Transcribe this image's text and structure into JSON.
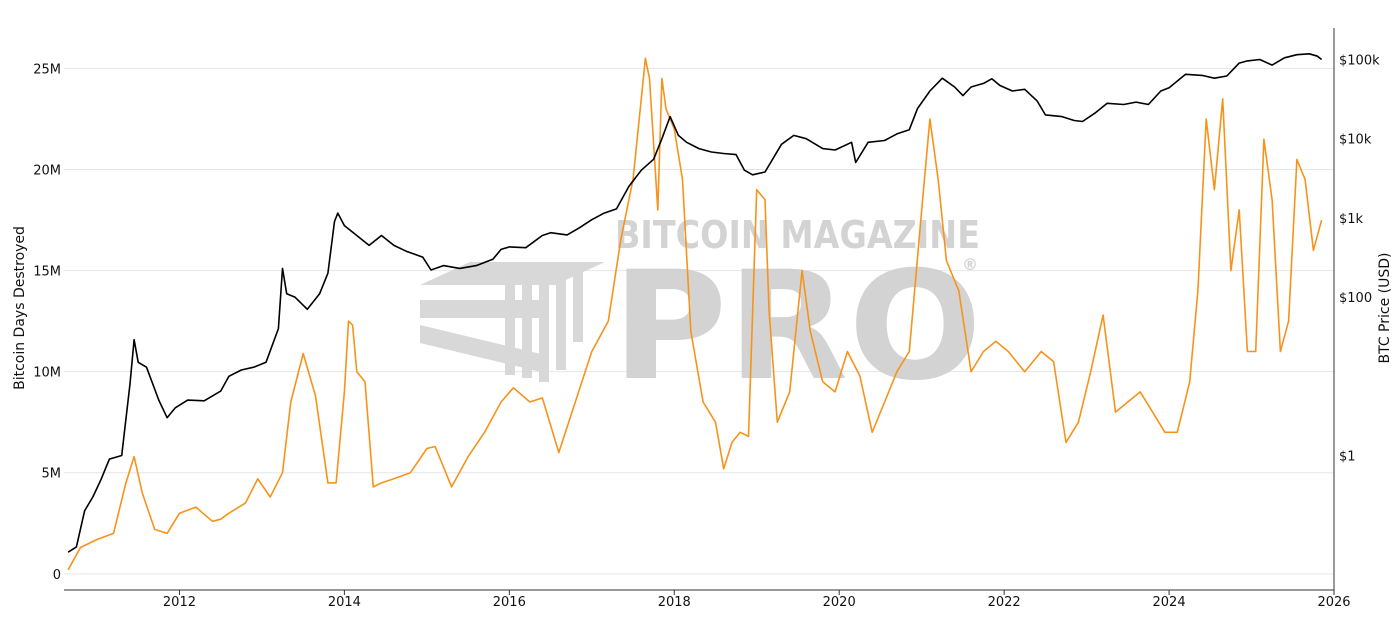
{
  "chart_data": {
    "type": "line",
    "title": "",
    "watermark": {
      "line1": "BITCOIN MAGAZINE",
      "line2": "PRO",
      "mark": "®",
      "color": "#cfcfcf"
    },
    "x_ticks": [
      "2012",
      "2014",
      "2016",
      "2018",
      "2020",
      "2022",
      "2024",
      "2026"
    ],
    "xlim": [
      2010.6,
      2026.0
    ],
    "y_left": {
      "label": "Bitcoin Days Destroyed",
      "ticks": [
        "0",
        "5M",
        "10M",
        "15M",
        "20M",
        "25M"
      ],
      "tick_values": [
        0,
        5000000,
        10000000,
        15000000,
        20000000,
        25000000
      ],
      "range": [
        -800000,
        27000000
      ]
    },
    "y_right": {
      "label": "BTC Price (USD)",
      "scale": "log",
      "ticks": [
        "$1",
        "$100",
        "$1k",
        "$10k",
        "$100k"
      ],
      "tick_values": [
        1,
        100,
        1000,
        10000,
        100000
      ],
      "range": [
        0.02,
        250000
      ]
    },
    "grid": true,
    "series": [
      {
        "name": "Bitcoin Days Destroyed",
        "axis": "left",
        "color": "#f7931a",
        "x": [
          2010.65,
          2010.8,
          2010.9,
          2011.0,
          2011.2,
          2011.35,
          2011.45,
          2011.55,
          2011.7,
          2011.85,
          2012.0,
          2012.2,
          2012.4,
          2012.5,
          2012.6,
          2012.8,
          2012.95,
          2013.1,
          2013.25,
          2013.35,
          2013.5,
          2013.65,
          2013.8,
          2013.9,
          2014.0,
          2014.05,
          2014.1,
          2014.15,
          2014.25,
          2014.35,
          2014.45,
          2014.6,
          2014.8,
          2015.0,
          2015.1,
          2015.3,
          2015.5,
          2015.7,
          2015.9,
          2016.05,
          2016.25,
          2016.4,
          2016.6,
          2016.8,
          2017.0,
          2017.2,
          2017.35,
          2017.5,
          2017.6,
          2017.65,
          2017.7,
          2017.8,
          2017.85,
          2017.9,
          2018.0,
          2018.1,
          2018.2,
          2018.35,
          2018.5,
          2018.6,
          2018.7,
          2018.8,
          2018.9,
          2019.0,
          2019.1,
          2019.15,
          2019.25,
          2019.4,
          2019.55,
          2019.65,
          2019.8,
          2019.95,
          2020.1,
          2020.25,
          2020.4,
          2020.55,
          2020.7,
          2020.85,
          2021.0,
          2021.1,
          2021.2,
          2021.3,
          2021.45,
          2021.6,
          2021.75,
          2021.9,
          2022.05,
          2022.25,
          2022.45,
          2022.6,
          2022.75,
          2022.9,
          2023.05,
          2023.2,
          2023.35,
          2023.5,
          2023.65,
          2023.8,
          2023.95,
          2024.1,
          2024.25,
          2024.35,
          2024.45,
          2024.55,
          2024.65,
          2024.75,
          2024.85,
          2024.95,
          2025.05,
          2025.15,
          2025.25,
          2025.35,
          2025.45,
          2025.55,
          2025.65,
          2025.75,
          2025.85
        ],
        "values": [
          200000,
          1300000,
          1500000,
          1700000,
          2000000,
          4500000,
          5800000,
          4000000,
          2200000,
          2000000,
          3000000,
          3300000,
          2600000,
          2700000,
          3000000,
          3500000,
          4700000,
          3800000,
          5000000,
          8500000,
          10900000,
          8800000,
          4500000,
          4500000,
          9000000,
          12500000,
          12300000,
          10000000,
          9500000,
          4300000,
          4500000,
          4700000,
          5000000,
          6200000,
          6300000,
          4300000,
          5800000,
          7000000,
          8500000,
          9200000,
          8500000,
          8700000,
          6000000,
          8500000,
          11000000,
          12500000,
          16500000,
          19500000,
          23500000,
          25500000,
          24500000,
          18000000,
          24500000,
          23000000,
          22000000,
          19500000,
          12000000,
          8500000,
          7500000,
          5200000,
          6500000,
          7000000,
          6800000,
          19000000,
          18500000,
          13000000,
          7500000,
          9000000,
          15000000,
          12000000,
          9500000,
          9000000,
          11000000,
          9800000,
          7000000,
          8500000,
          10000000,
          11000000,
          18000000,
          22500000,
          19500000,
          15500000,
          14000000,
          10000000,
          11000000,
          11500000,
          11000000,
          10000000,
          11000000,
          10500000,
          6500000,
          7500000,
          10000000,
          12800000,
          8000000,
          8500000,
          9000000,
          8000000,
          7000000,
          7000000,
          9500000,
          14000000,
          22500000,
          19000000,
          23500000,
          15000000,
          18000000,
          11000000,
          11000000,
          21500000,
          18500000,
          11000000,
          12500000,
          20500000,
          19500000,
          16000000,
          17500000
        ]
      },
      {
        "name": "BTC Price (USD)",
        "axis": "right",
        "color": "#000000",
        "x": [
          2010.65,
          2010.75,
          2010.85,
          2010.95,
          2011.05,
          2011.15,
          2011.3,
          2011.4,
          2011.45,
          2011.5,
          2011.6,
          2011.75,
          2011.85,
          2011.95,
          2012.1,
          2012.3,
          2012.5,
          2012.6,
          2012.75,
          2012.9,
          2013.05,
          2013.2,
          2013.25,
          2013.3,
          2013.4,
          2013.55,
          2013.7,
          2013.8,
          2013.88,
          2013.92,
          2014.0,
          2014.15,
          2014.3,
          2014.45,
          2014.6,
          2014.75,
          2014.95,
          2015.05,
          2015.2,
          2015.4,
          2015.6,
          2015.8,
          2015.9,
          2016.0,
          2016.2,
          2016.4,
          2016.5,
          2016.7,
          2016.85,
          2017.0,
          2017.15,
          2017.3,
          2017.45,
          2017.6,
          2017.75,
          2017.85,
          2017.95,
          2018.05,
          2018.15,
          2018.3,
          2018.45,
          2018.6,
          2018.75,
          2018.85,
          2018.95,
          2019.1,
          2019.3,
          2019.45,
          2019.6,
          2019.8,
          2019.95,
          2020.15,
          2020.2,
          2020.35,
          2020.55,
          2020.7,
          2020.85,
          2020.95,
          2021.1,
          2021.25,
          2021.4,
          2021.5,
          2021.6,
          2021.75,
          2021.85,
          2021.95,
          2022.1,
          2022.25,
          2022.4,
          2022.5,
          2022.7,
          2022.85,
          2022.95,
          2023.1,
          2023.25,
          2023.45,
          2023.6,
          2023.75,
          2023.9,
          2024.0,
          2024.2,
          2024.4,
          2024.55,
          2024.7,
          2024.85,
          2024.95,
          2025.1,
          2025.25,
          2025.4,
          2025.55,
          2025.7,
          2025.8,
          2025.85
        ],
        "values": [
          0.06,
          0.07,
          0.2,
          0.3,
          0.5,
          0.9,
          1.0,
          8,
          29,
          15,
          13,
          5,
          3,
          4,
          5,
          4.9,
          6.5,
          10,
          12,
          13,
          15,
          40,
          230,
          110,
          100,
          70,
          110,
          200,
          900,
          1150,
          800,
          600,
          450,
          600,
          450,
          380,
          320,
          220,
          250,
          230,
          250,
          300,
          400,
          430,
          420,
          600,
          650,
          610,
          750,
          950,
          1150,
          1300,
          2500,
          4000,
          5500,
          10000,
          19000,
          11000,
          9000,
          7500,
          6800,
          6500,
          6300,
          4000,
          3500,
          3800,
          8500,
          11000,
          10000,
          7500,
          7200,
          9000,
          5000,
          9000,
          9500,
          11500,
          13000,
          24000,
          40000,
          58000,
          45000,
          35000,
          45000,
          50000,
          57000,
          47000,
          40000,
          42000,
          30000,
          20000,
          19000,
          17000,
          16500,
          21000,
          28000,
          27000,
          29000,
          27000,
          40000,
          44000,
          65000,
          63000,
          58000,
          62000,
          90000,
          96000,
          100000,
          85000,
          105000,
          115000,
          118000,
          110000,
          100000
        ]
      }
    ]
  }
}
